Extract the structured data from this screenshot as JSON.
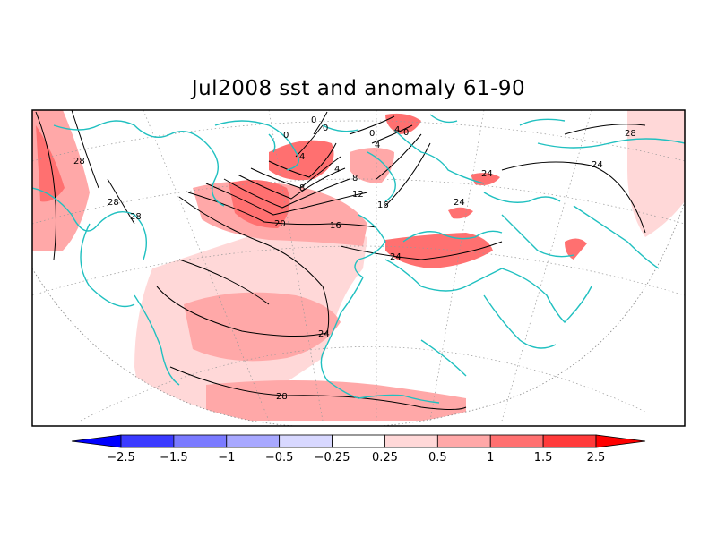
{
  "title": "Jul2008 sst and anomaly 61-90",
  "colorbar": {
    "levels": [
      -2.5,
      -1.5,
      -1,
      -0.5,
      -0.25,
      0.25,
      0.5,
      1,
      1.5,
      2.5
    ],
    "tick_labels": [
      "-2.5",
      "-1.5",
      "-1",
      "-0.5",
      "-0.25",
      "0.25",
      "0.5",
      "1",
      "1.5",
      "2.5"
    ],
    "colors": [
      "#0000ff",
      "#3a3aff",
      "#7a7aff",
      "#a8a8ff",
      "#d8d8ff",
      "#ffffff",
      "#ffd8d8",
      "#ffa8a8",
      "#ff7070",
      "#ff3a3a",
      "#ff0000"
    ]
  },
  "contour_labels": [
    "28",
    "28",
    "28",
    "28",
    "28",
    "24",
    "24",
    "24",
    "24",
    "24",
    "20",
    "16",
    "16",
    "12",
    "8",
    "8",
    "4",
    "4",
    "4",
    "0",
    "0",
    "0",
    "0",
    "4",
    "0"
  ],
  "colors": {
    "coast": "#20c0c0",
    "anomaly_light": "#ffd8d8",
    "anomaly_mid": "#ffa8a8",
    "anomaly_strong": "#ff7070",
    "anomaly_max": "#ff3a3a"
  }
}
